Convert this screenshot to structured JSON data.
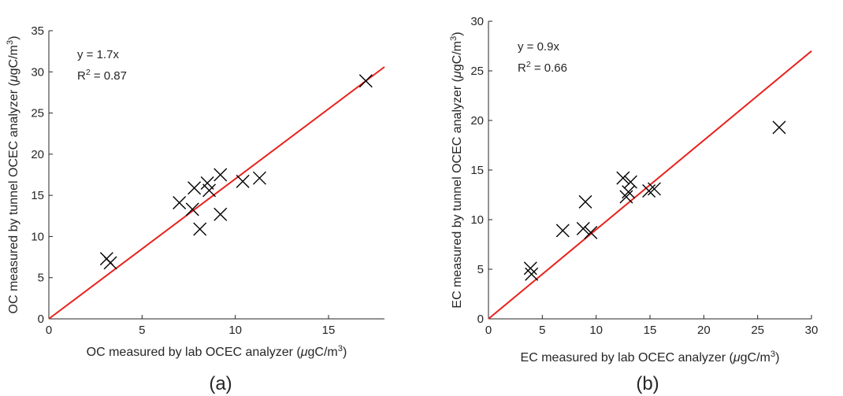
{
  "colors": {
    "fit_line": "#e8221d",
    "marker": "#000000",
    "axis": "#262626"
  },
  "chart_data": [
    {
      "type": "scatter",
      "panel_label": "(a)",
      "xlabel": "OC measured by lab OCEC analyzer (μgC/m³)",
      "ylabel": "OC measured by tunnel OCEC analyzer (μgC/m³)",
      "xlim": [
        0,
        18
      ],
      "ylim": [
        0,
        35
      ],
      "xticks": [
        0,
        5,
        10,
        15
      ],
      "yticks": [
        0,
        5,
        10,
        15,
        20,
        25,
        30,
        35
      ],
      "marker": "x",
      "equation": "y = 1.7x",
      "r2": "R² = 0.87",
      "fit_slope": 1.7,
      "points": [
        {
          "x": 3.1,
          "y": 7.3
        },
        {
          "x": 3.3,
          "y": 6.8
        },
        {
          "x": 7.0,
          "y": 14.1
        },
        {
          "x": 7.7,
          "y": 13.3
        },
        {
          "x": 7.8,
          "y": 15.9
        },
        {
          "x": 8.1,
          "y": 10.9
        },
        {
          "x": 8.5,
          "y": 16.5
        },
        {
          "x": 8.6,
          "y": 15.6
        },
        {
          "x": 9.2,
          "y": 17.5
        },
        {
          "x": 9.2,
          "y": 12.7
        },
        {
          "x": 10.4,
          "y": 16.7
        },
        {
          "x": 11.3,
          "y": 17.1
        },
        {
          "x": 17.0,
          "y": 28.9
        }
      ]
    },
    {
      "type": "scatter",
      "panel_label": "(b)",
      "xlabel": "EC measured by lab OCEC analyzer (μgC/m³)",
      "ylabel": "EC measured by tunnel OCEC analyzer (μgC/m³)",
      "xlim": [
        0,
        30
      ],
      "ylim": [
        0,
        30
      ],
      "xticks": [
        0,
        5,
        10,
        15,
        20,
        25,
        30
      ],
      "yticks": [
        0,
        5,
        10,
        15,
        20,
        25,
        30
      ],
      "marker": "x",
      "equation": "y = 0.9x",
      "r2": "R² = 0.66",
      "fit_slope": 0.9,
      "points": [
        {
          "x": 3.9,
          "y": 5.1
        },
        {
          "x": 4.0,
          "y": 4.5
        },
        {
          "x": 6.9,
          "y": 8.9
        },
        {
          "x": 8.8,
          "y": 9.1
        },
        {
          "x": 9.0,
          "y": 11.8
        },
        {
          "x": 9.5,
          "y": 8.7
        },
        {
          "x": 12.5,
          "y": 14.2
        },
        {
          "x": 12.8,
          "y": 12.3
        },
        {
          "x": 13.0,
          "y": 12.8
        },
        {
          "x": 13.2,
          "y": 13.8
        },
        {
          "x": 14.9,
          "y": 12.9
        },
        {
          "x": 15.4,
          "y": 13.1
        },
        {
          "x": 27.0,
          "y": 19.3
        }
      ]
    }
  ]
}
